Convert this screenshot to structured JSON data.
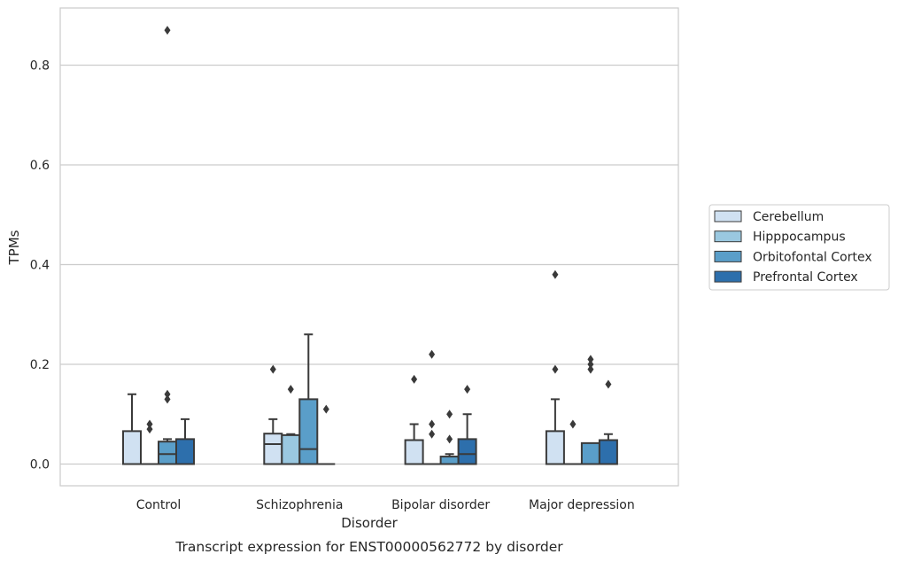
{
  "chart_data": {
    "type": "box",
    "title": "",
    "caption": "Transcript expression for ENST00000562772 by disorder",
    "xlabel": "Disorder",
    "ylabel": "TPMs",
    "ylim": [
      -0.043,
      0.915
    ],
    "yticks": [
      {
        "value": 0.0,
        "label": "0.0"
      },
      {
        "value": 0.2,
        "label": "0.2"
      },
      {
        "value": 0.4,
        "label": "0.4"
      },
      {
        "value": 0.6,
        "label": "0.6"
      },
      {
        "value": 0.8,
        "label": "0.8"
      }
    ],
    "grid": "horizontal",
    "legend_position": "right",
    "categories": [
      "Control",
      "Schizophrenia",
      "Bipolar disorder",
      "Major depression"
    ],
    "series": [
      {
        "name": "Cerebellum",
        "color": "#d0e1f2",
        "boxes": [
          {
            "q1": 0.0,
            "median": 0.0,
            "q3": 0.066,
            "whisker_low": 0.0,
            "whisker_high": 0.14,
            "outliers": []
          },
          {
            "q1": 0.0,
            "median": 0.04,
            "q3": 0.061,
            "whisker_low": 0.0,
            "whisker_high": 0.09,
            "outliers": [
              0.19
            ]
          },
          {
            "q1": 0.0,
            "median": 0.0,
            "q3": 0.048,
            "whisker_low": 0.0,
            "whisker_high": 0.08,
            "outliers": [
              0.17
            ]
          },
          {
            "q1": 0.0,
            "median": 0.0,
            "q3": 0.066,
            "whisker_low": 0.0,
            "whisker_high": 0.13,
            "outliers": [
              0.19,
              0.38
            ]
          }
        ]
      },
      {
        "name": "Hipppocampus",
        "color": "#9ac8e0",
        "boxes": [
          {
            "q1": 0.0,
            "median": 0.0,
            "q3": 0.0,
            "whisker_low": 0.0,
            "whisker_high": 0.0,
            "outliers": [
              0.07,
              0.08
            ]
          },
          {
            "q1": 0.0,
            "median": 0.0,
            "q3": 0.058,
            "whisker_low": 0.0,
            "whisker_high": 0.06,
            "outliers": [
              0.15
            ]
          },
          {
            "q1": 0.0,
            "median": 0.0,
            "q3": 0.0,
            "whisker_low": 0.0,
            "whisker_high": 0.0,
            "outliers": [
              0.06,
              0.08,
              0.22
            ]
          },
          {
            "q1": 0.0,
            "median": 0.0,
            "q3": 0.0,
            "whisker_low": 0.0,
            "whisker_high": 0.0,
            "outliers": [
              0.08
            ]
          }
        ]
      },
      {
        "name": "Orbitofontal Cortex",
        "color": "#5a9ec9",
        "boxes": [
          {
            "q1": 0.0,
            "median": 0.02,
            "q3": 0.045,
            "whisker_low": 0.0,
            "whisker_high": 0.05,
            "outliers": [
              0.13,
              0.14,
              0.87
            ]
          },
          {
            "q1": 0.0,
            "median": 0.03,
            "q3": 0.13,
            "whisker_low": 0.0,
            "whisker_high": 0.26,
            "outliers": []
          },
          {
            "q1": 0.0,
            "median": 0.0,
            "q3": 0.015,
            "whisker_low": 0.0,
            "whisker_high": 0.02,
            "outliers": [
              0.05,
              0.1
            ]
          },
          {
            "q1": 0.0,
            "median": 0.0,
            "q3": 0.042,
            "whisker_low": 0.0,
            "whisker_high": 0.042,
            "outliers": [
              0.19,
              0.2,
              0.21
            ]
          }
        ]
      },
      {
        "name": "Prefrontal Cortex",
        "color": "#2d6fac",
        "boxes": [
          {
            "q1": 0.0,
            "median": 0.0,
            "q3": 0.05,
            "whisker_low": 0.0,
            "whisker_high": 0.09,
            "outliers": []
          },
          {
            "q1": 0.0,
            "median": 0.0,
            "q3": 0.0,
            "whisker_low": 0.0,
            "whisker_high": 0.0,
            "outliers": [
              0.11
            ]
          },
          {
            "q1": 0.0,
            "median": 0.02,
            "q3": 0.05,
            "whisker_low": 0.0,
            "whisker_high": 0.1,
            "outliers": [
              0.15
            ]
          },
          {
            "q1": 0.0,
            "median": 0.0,
            "q3": 0.048,
            "whisker_low": 0.0,
            "whisker_high": 0.06,
            "outliers": [
              0.16
            ]
          }
        ]
      }
    ]
  }
}
